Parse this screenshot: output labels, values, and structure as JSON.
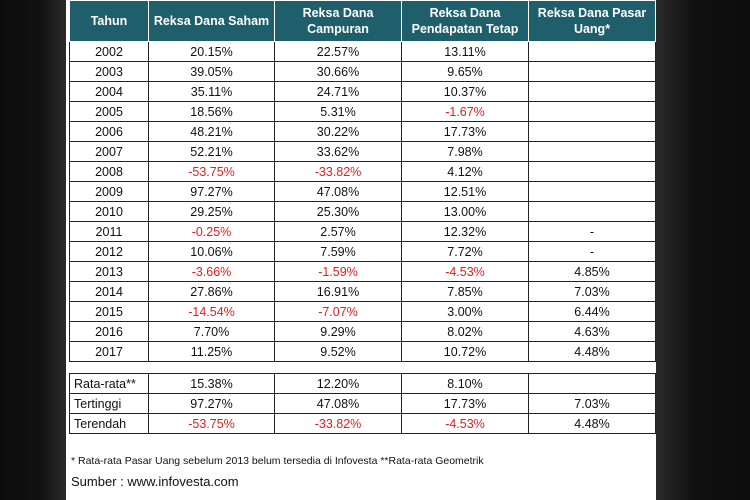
{
  "headers": [
    "Tahun",
    "Reksa Dana Saham",
    "Reksa Dana Campuran",
    "Reksa Dana Pendapatan Tetap",
    "Reksa Dana Pasar Uang*"
  ],
  "rows": [
    {
      "year": "2002",
      "saham": "20.15%",
      "campuran": "22.57%",
      "tetap": "13.11%",
      "pasar": ""
    },
    {
      "year": "2003",
      "saham": "39.05%",
      "campuran": "30.66%",
      "tetap": "9.65%",
      "pasar": ""
    },
    {
      "year": "2004",
      "saham": "35.11%",
      "campuran": "24.71%",
      "tetap": "10.37%",
      "pasar": ""
    },
    {
      "year": "2005",
      "saham": "18.56%",
      "campuran": "5.31%",
      "tetap": "-1.67%",
      "pasar": ""
    },
    {
      "year": "2006",
      "saham": "48.21%",
      "campuran": "30.22%",
      "tetap": "17.73%",
      "pasar": ""
    },
    {
      "year": "2007",
      "saham": "52.21%",
      "campuran": "33.62%",
      "tetap": "7.98%",
      "pasar": ""
    },
    {
      "year": "2008",
      "saham": "-53.75%",
      "campuran": "-33.82%",
      "tetap": "4.12%",
      "pasar": ""
    },
    {
      "year": "2009",
      "saham": "97.27%",
      "campuran": "47.08%",
      "tetap": "12.51%",
      "pasar": ""
    },
    {
      "year": "2010",
      "saham": "29.25%",
      "campuran": "25.30%",
      "tetap": "13.00%",
      "pasar": ""
    },
    {
      "year": "2011",
      "saham": "-0.25%",
      "campuran": "2.57%",
      "tetap": "12.32%",
      "pasar": "-"
    },
    {
      "year": "2012",
      "saham": "10.06%",
      "campuran": "7.59%",
      "tetap": "7.72%",
      "pasar": "-"
    },
    {
      "year": "2013",
      "saham": "-3.66%",
      "campuran": "-1.59%",
      "tetap": "-4.53%",
      "pasar": "4.85%"
    },
    {
      "year": "2014",
      "saham": "27.86%",
      "campuran": "16.91%",
      "tetap": "7.85%",
      "pasar": "7.03%"
    },
    {
      "year": "2015",
      "saham": "-14.54%",
      "campuran": "-7.07%",
      "tetap": "3.00%",
      "pasar": "6.44%"
    },
    {
      "year": "2016",
      "saham": "7.70%",
      "campuran": "9.29%",
      "tetap": "8.02%",
      "pasar": "4.63%"
    },
    {
      "year": "2017",
      "saham": "11.25%",
      "campuran": "9.52%",
      "tetap": "10.72%",
      "pasar": "4.48%"
    }
  ],
  "summary": [
    {
      "label": "Rata-rata**",
      "saham": "15.38%",
      "campuran": "12.20%",
      "tetap": "8.10%",
      "pasar": ""
    },
    {
      "label": "Tertinggi",
      "saham": "97.27%",
      "campuran": "47.08%",
      "tetap": "17.73%",
      "pasar": "7.03%"
    },
    {
      "label": "Terendah",
      "saham": "-53.75%",
      "campuran": "-33.82%",
      "tetap": "-4.53%",
      "pasar": "4.48%"
    }
  ],
  "footnote": "* Rata-rata Pasar Uang sebelum 2013 belum tersedia di Infovesta **Rata-rata Geometrik",
  "source": "Sumber : www.infovesta.com",
  "colors": {
    "header_bg": "#1f5e6b",
    "negative": "#e01e1e"
  }
}
